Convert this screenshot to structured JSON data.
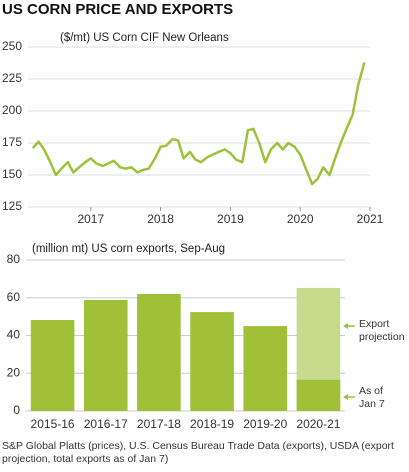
{
  "title": "US CORN PRICE AND EXPORTS",
  "source": "S&P Global Platts (prices), U.S. Census Bureau Trade Data (exports), USDA (export projection, total exports as of Jan 7)",
  "chart_data": [
    {
      "type": "line",
      "subtitle": "($/mt) US Corn CIF New Orleans",
      "x": [
        2016.17,
        2016.25,
        2016.33,
        2016.42,
        2016.5,
        2016.58,
        2016.67,
        2016.75,
        2016.83,
        2016.92,
        2017.0,
        2017.08,
        2017.17,
        2017.25,
        2017.33,
        2017.42,
        2017.5,
        2017.58,
        2017.67,
        2017.75,
        2017.83,
        2017.92,
        2018.0,
        2018.08,
        2018.17,
        2018.25,
        2018.33,
        2018.42,
        2018.5,
        2018.58,
        2018.67,
        2018.75,
        2018.83,
        2018.92,
        2019.0,
        2019.08,
        2019.17,
        2019.25,
        2019.33,
        2019.42,
        2019.5,
        2019.58,
        2019.67,
        2019.75,
        2019.83,
        2019.92,
        2020.0,
        2020.08,
        2020.17,
        2020.25,
        2020.33,
        2020.42,
        2020.5,
        2020.58,
        2020.67,
        2020.75,
        2020.83,
        2020.92
      ],
      "series": [
        {
          "name": "US Corn CIF New Orleans",
          "color": "#9dc23a",
          "values": [
            171,
            176,
            170,
            160,
            150,
            155,
            160,
            152,
            156,
            160,
            163,
            159,
            157,
            159,
            161,
            156,
            155,
            156,
            152,
            154,
            155,
            163,
            172,
            173,
            178,
            177,
            163,
            168,
            162,
            160,
            164,
            166,
            168,
            170,
            167,
            162,
            160,
            185,
            186,
            174,
            160,
            170,
            175,
            170,
            175,
            172,
            166,
            155,
            143,
            147,
            156,
            150,
            163,
            175,
            187,
            197,
            220,
            238
          ]
        }
      ],
      "xlim": [
        2016.1,
        2021
      ],
      "xticks": [
        2017,
        2018,
        2019,
        2020,
        2021
      ],
      "ylim": [
        125,
        250
      ],
      "yticks": [
        125,
        150,
        175,
        200,
        225,
        250
      ],
      "grid": true
    },
    {
      "type": "bar",
      "subtitle": "(million mt) US corn exports, Sep-Aug",
      "categories": [
        "2015-16",
        "2016-17",
        "2017-18",
        "2018-19",
        "2019-20",
        "2020-21"
      ],
      "series": [
        {
          "name": "US corn exports",
          "color": "#a0c037",
          "values": [
            48.2,
            58.8,
            62,
            52.4,
            45,
            null
          ]
        },
        {
          "name": "Export projection",
          "color": "#c8da8e",
          "values": [
            null,
            null,
            null,
            null,
            null,
            65.2
          ]
        },
        {
          "name": "As of Jan 7",
          "color": "#a0c037",
          "values": [
            null,
            null,
            null,
            null,
            null,
            16.5
          ]
        }
      ],
      "ylim": [
        0,
        80
      ],
      "yticks": [
        0,
        20,
        40,
        60,
        80
      ],
      "grid": true
    }
  ]
}
